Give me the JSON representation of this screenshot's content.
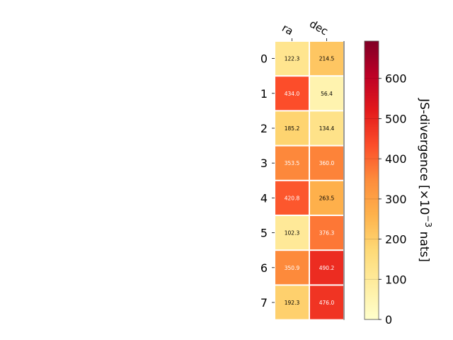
{
  "chart_data": {
    "type": "heatmap",
    "columns": [
      "ra",
      "dec"
    ],
    "rows": [
      "0",
      "1",
      "2",
      "3",
      "4",
      "5",
      "6",
      "7"
    ],
    "values": [
      [
        122.3,
        214.5
      ],
      [
        434.0,
        56.4
      ],
      [
        185.2,
        134.4
      ],
      [
        353.5,
        360.0
      ],
      [
        420.8,
        263.5
      ],
      [
        102.3,
        376.3
      ],
      [
        350.9,
        490.2
      ],
      [
        192.3,
        476.0
      ]
    ],
    "value_labels": [
      [
        "122.3",
        "214.5"
      ],
      [
        "434.0",
        "56.4"
      ],
      [
        "185.2",
        "134.4"
      ],
      [
        "353.5",
        "360.0"
      ],
      [
        "420.8",
        "263.5"
      ],
      [
        "102.3",
        "376.3"
      ],
      [
        "350.9",
        "490.2"
      ],
      [
        "192.3",
        "476.0"
      ]
    ],
    "colorbar": {
      "label": "JS-divergence [×10",
      "label_exp": "−3",
      "label_unit": " nats]",
      "range": [
        0,
        693
      ],
      "ticks": [
        0,
        100,
        200,
        300,
        400,
        500,
        600
      ],
      "tick_labels": [
        "0",
        "100",
        "200",
        "300",
        "400",
        "500",
        "600"
      ],
      "colormap": "YlOrRd"
    },
    "colors": {
      "cmap_stops": [
        "#ffffcc",
        "#ffeda0",
        "#fed976",
        "#feb24c",
        "#fd8d3c",
        "#fc4e2a",
        "#e31a1c",
        "#bd0026",
        "#800026"
      ],
      "light_text": "#ffffff",
      "dark_text": "#000000",
      "cell_border": "#ffffff"
    }
  }
}
